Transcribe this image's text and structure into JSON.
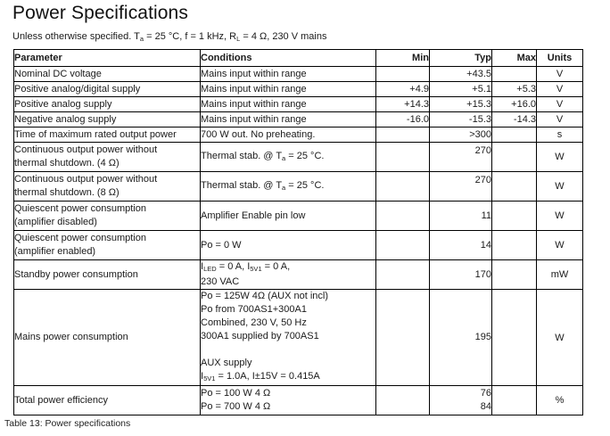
{
  "page": {
    "title": "Power Specifications",
    "caption": "Table 13: Power specifications"
  },
  "subtitle_segments": [
    {
      "t": "Unless otherwise specified. T"
    },
    {
      "t": "a",
      "sub": true
    },
    {
      "t": " = 25 °C, f = 1 kHz, R"
    },
    {
      "t": "L",
      "sub": true
    },
    {
      "t": " = 4 Ω, 230 V mains"
    }
  ],
  "table": {
    "headers": [
      "Parameter",
      "Conditions",
      "Min",
      "Typ",
      "Max",
      "Units"
    ],
    "rows": [
      {
        "parameter": [
          "Nominal DC voltage"
        ],
        "conditions": [
          [
            {
              "t": "Mains input within range"
            }
          ]
        ],
        "min": [],
        "typ": [
          "+43.5"
        ],
        "max": [],
        "units": "V"
      },
      {
        "parameter": [
          "Positive analog/digital supply"
        ],
        "conditions": [
          [
            {
              "t": "Mains input within range"
            }
          ]
        ],
        "min": [
          "+4.9"
        ],
        "typ": [
          "+5.1"
        ],
        "max": [
          "+5.3"
        ],
        "units": "V"
      },
      {
        "parameter": [
          "Positive analog supply"
        ],
        "conditions": [
          [
            {
              "t": "Mains input within range"
            }
          ]
        ],
        "min": [
          "+14.3"
        ],
        "typ": [
          "+15.3"
        ],
        "max": [
          "+16.0"
        ],
        "units": "V"
      },
      {
        "parameter": [
          "Negative analog supply"
        ],
        "conditions": [
          [
            {
              "t": "Mains input within range"
            }
          ]
        ],
        "min": [
          "-16.0"
        ],
        "typ": [
          "-15.3"
        ],
        "max": [
          "-14.3"
        ],
        "units": "V"
      },
      {
        "parameter": [
          "Time of maximum rated output power"
        ],
        "conditions": [
          [
            {
              "t": "700 W out. No preheating."
            }
          ]
        ],
        "min": [],
        "typ": [
          ">300"
        ],
        "max": [],
        "units": "s"
      },
      {
        "parameter": [
          "Continuous output power without",
          "thermal shutdown. (4 Ω)"
        ],
        "conditions": [
          [
            {
              "t": "Thermal stab. @ T"
            },
            {
              "t": "a",
              "sub": true
            },
            {
              "t": " = 25 °C."
            }
          ]
        ],
        "min": [],
        "typ": [
          "270"
        ],
        "max": [],
        "units": "W",
        "typ_valign": "top"
      },
      {
        "parameter": [
          "Continuous output power without",
          "thermal shutdown. (8 Ω)"
        ],
        "conditions": [
          [
            {
              "t": "Thermal stab. @ T"
            },
            {
              "t": "a",
              "sub": true
            },
            {
              "t": " = 25 °C."
            }
          ]
        ],
        "min": [],
        "typ": [
          "270"
        ],
        "max": [],
        "units": "W",
        "typ_valign": "top"
      },
      {
        "parameter": [
          "Quiescent power consumption",
          "(amplifier disabled)"
        ],
        "conditions": [
          [
            {
              "t": "Amplifier Enable pin low"
            }
          ]
        ],
        "min": [],
        "typ": [
          "11"
        ],
        "max": [],
        "units": "W"
      },
      {
        "parameter": [
          "Quiescent power consumption",
          "(amplifier enabled)"
        ],
        "conditions": [
          [
            {
              "t": "Po = 0 W"
            }
          ]
        ],
        "min": [],
        "typ": [
          "14"
        ],
        "max": [],
        "units": "W"
      },
      {
        "parameter": [
          "Standby power consumption"
        ],
        "conditions": [
          [
            {
              "t": "I"
            },
            {
              "t": "LED",
              "sub": true
            },
            {
              "t": " = 0 A, I"
            },
            {
              "t": "5V1",
              "sub": true
            },
            {
              "t": " = 0 A,"
            }
          ],
          [
            {
              "t": "230 VAC"
            }
          ]
        ],
        "min": [],
        "typ": [
          "170"
        ],
        "max": [],
        "units": "mW"
      },
      {
        "parameter": [
          "Mains power consumption"
        ],
        "conditions": [
          [
            {
              "t": "Po = 125W 4Ω (AUX not incl)"
            }
          ],
          [
            {
              "t": "Po from 700AS1+300A1"
            }
          ],
          [
            {
              "t": "Combined, 230 V, 50 Hz"
            }
          ],
          [
            {
              "t": "300A1 supplied by 700AS1"
            }
          ],
          [],
          [
            {
              "t": "AUX supply"
            }
          ],
          [
            {
              "t": "I"
            },
            {
              "t": "5V1",
              "sub": true
            },
            {
              "t": " = 1.0A, I±15V = 0.415A"
            }
          ]
        ],
        "min": [],
        "typ": [
          "195"
        ],
        "max": [],
        "units": "W"
      },
      {
        "parameter": [
          "Total power efficiency"
        ],
        "conditions": [
          [
            {
              "t": "Po = 100 W 4 Ω"
            }
          ],
          [
            {
              "t": "Po = 700 W 4 Ω"
            }
          ]
        ],
        "min": [],
        "typ": [
          "76",
          "84"
        ],
        "max": [],
        "units": "%"
      }
    ]
  }
}
